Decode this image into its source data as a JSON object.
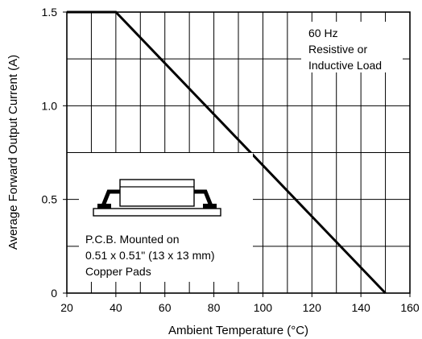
{
  "chart_data": {
    "type": "line",
    "title": "",
    "xlabel": "Ambient Temperature (°C)",
    "ylabel": "Average Forward Output Current (A)",
    "xlim": [
      20,
      160
    ],
    "ylim": [
      0,
      1.5
    ],
    "x_ticks": [
      20,
      40,
      60,
      80,
      100,
      120,
      140,
      160
    ],
    "x_tick_labels": [
      "20",
      "40",
      "60",
      "80",
      "100",
      "120",
      "140",
      "160"
    ],
    "y_ticks": [
      0,
      0.5,
      1.0,
      1.5
    ],
    "y_tick_labels": [
      "0",
      "0.5",
      "1.0",
      "1.5"
    ],
    "grid": true,
    "series": [
      {
        "x": [
          20,
          40,
          150
        ],
        "y": [
          1.5,
          1.5,
          0
        ]
      }
    ],
    "annotations": {
      "load_note": [
        "60 Hz",
        "Resistive or",
        "Inductive Load"
      ],
      "mount_note": [
        "P.C.B. Mounted on",
        "0.51 x 0.51\" (13 x 13 mm)",
        "Copper Pads"
      ]
    }
  },
  "colors": {
    "line": "#000000",
    "grid": "#000000",
    "background": "#ffffff"
  },
  "icons": {
    "package": "smd-package-on-pcb-icon"
  }
}
